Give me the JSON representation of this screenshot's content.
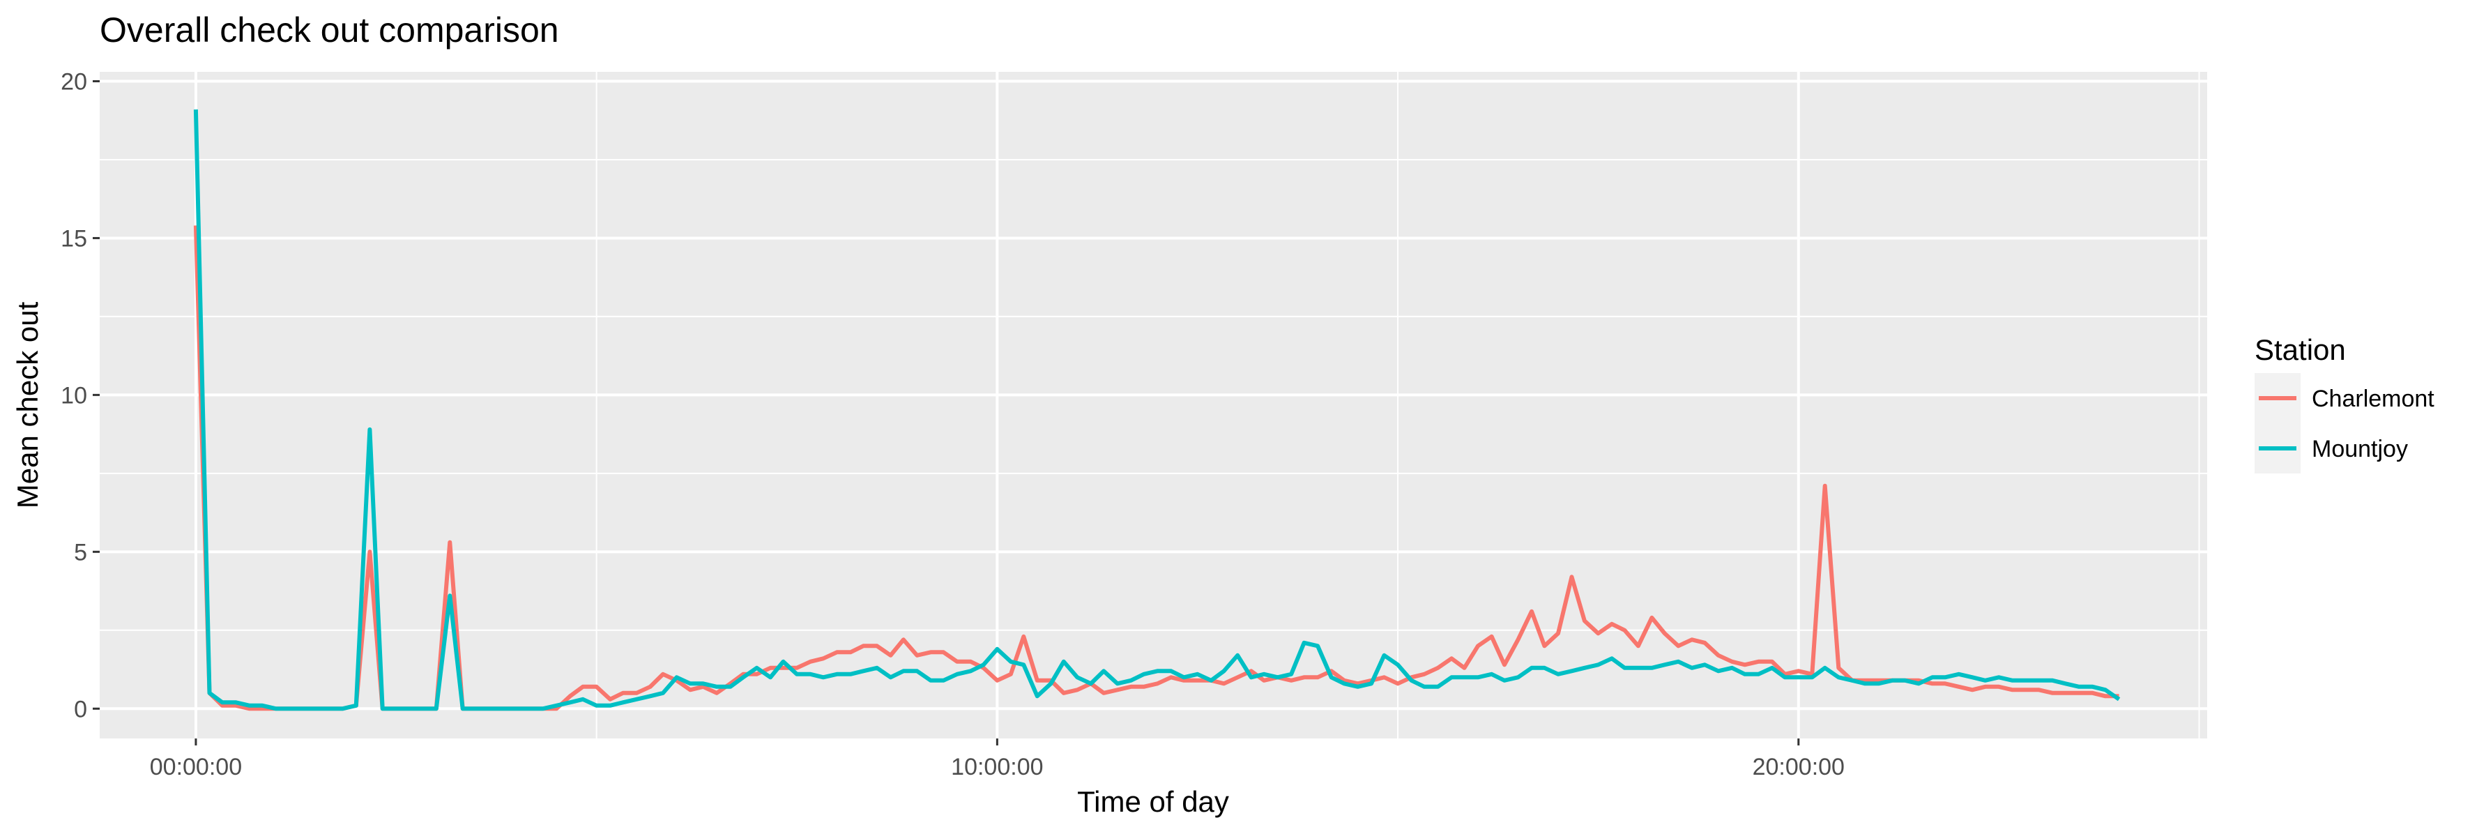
{
  "chart_data": {
    "type": "line",
    "title": "Overall check out comparison",
    "xlabel": "Time of day",
    "ylabel": "Mean check out",
    "x_unit": "hours",
    "xlim": [
      -1.2,
      25.1
    ],
    "ylim": [
      -0.95,
      20.3
    ],
    "x_ticks": [
      {
        "value": 0,
        "label": "00:00:00"
      },
      {
        "value": 10,
        "label": "10:00:00"
      },
      {
        "value": 20,
        "label": "20:00:00"
      }
    ],
    "y_ticks": [
      {
        "value": 0,
        "label": "0"
      },
      {
        "value": 5,
        "label": "5"
      },
      {
        "value": 10,
        "label": "10"
      },
      {
        "value": 15,
        "label": "15"
      },
      {
        "value": 20,
        "label": "20"
      }
    ],
    "grid": true,
    "background": "#ebebeb",
    "legend": {
      "title": "Station",
      "position": "right"
    },
    "series": [
      {
        "name": "Charlemont",
        "color": "#F8766D",
        "points": [
          [
            0.0,
            15.4
          ],
          [
            0.17,
            0.5
          ],
          [
            0.33,
            0.1
          ],
          [
            0.5,
            0.1
          ],
          [
            0.67,
            0.0
          ],
          [
            0.83,
            0.0
          ],
          [
            1.0,
            0.0
          ],
          [
            1.17,
            0.0
          ],
          [
            1.33,
            0.0
          ],
          [
            1.5,
            0.0
          ],
          [
            1.67,
            0.0
          ],
          [
            1.83,
            0.0
          ],
          [
            2.0,
            0.1
          ],
          [
            2.0,
            0.1
          ],
          [
            2.17,
            5.0
          ],
          [
            2.33,
            0.0
          ],
          [
            2.5,
            0.0
          ],
          [
            2.67,
            0.0
          ],
          [
            2.83,
            0.0
          ],
          [
            3.0,
            0.0
          ],
          [
            3.17,
            5.3
          ],
          [
            3.33,
            0.0
          ],
          [
            3.5,
            0.0
          ],
          [
            4.0,
            0.0
          ],
          [
            4.17,
            0.0
          ],
          [
            4.33,
            0.0
          ],
          [
            4.5,
            0.0
          ],
          [
            4.67,
            0.4
          ],
          [
            4.83,
            0.7
          ],
          [
            5.0,
            0.7
          ],
          [
            5.17,
            0.3
          ],
          [
            5.33,
            0.5
          ],
          [
            5.5,
            0.5
          ],
          [
            5.67,
            0.7
          ],
          [
            5.83,
            1.1
          ],
          [
            6.0,
            0.9
          ],
          [
            6.17,
            0.6
          ],
          [
            6.33,
            0.7
          ],
          [
            6.5,
            0.5
          ],
          [
            6.67,
            0.8
          ],
          [
            6.83,
            1.1
          ],
          [
            7.0,
            1.1
          ],
          [
            7.17,
            1.3
          ],
          [
            7.33,
            1.3
          ],
          [
            7.5,
            1.3
          ],
          [
            7.67,
            1.5
          ],
          [
            7.83,
            1.6
          ],
          [
            8.0,
            1.8
          ],
          [
            8.17,
            1.8
          ],
          [
            8.33,
            2.0
          ],
          [
            8.5,
            2.0
          ],
          [
            8.67,
            1.7
          ],
          [
            8.83,
            2.2
          ],
          [
            9.0,
            1.7
          ],
          [
            9.17,
            1.8
          ],
          [
            9.33,
            1.8
          ],
          [
            9.5,
            1.5
          ],
          [
            9.67,
            1.5
          ],
          [
            9.83,
            1.3
          ],
          [
            10.0,
            0.9
          ],
          [
            10.17,
            1.1
          ],
          [
            10.33,
            2.3
          ],
          [
            10.5,
            0.9
          ],
          [
            10.67,
            0.9
          ],
          [
            10.83,
            0.5
          ],
          [
            11.0,
            0.6
          ],
          [
            11.17,
            0.8
          ],
          [
            11.33,
            0.5
          ],
          [
            11.5,
            0.6
          ],
          [
            11.67,
            0.7
          ],
          [
            11.83,
            0.7
          ],
          [
            12.0,
            0.8
          ],
          [
            12.17,
            1.0
          ],
          [
            12.33,
            0.9
          ],
          [
            12.5,
            0.9
          ],
          [
            12.67,
            0.9
          ],
          [
            12.83,
            0.8
          ],
          [
            13.0,
            1.0
          ],
          [
            13.17,
            1.2
          ],
          [
            13.33,
            0.9
          ],
          [
            13.5,
            1.0
          ],
          [
            13.67,
            0.9
          ],
          [
            13.83,
            1.0
          ],
          [
            14.0,
            1.0
          ],
          [
            14.17,
            1.2
          ],
          [
            14.33,
            0.9
          ],
          [
            14.5,
            0.8
          ],
          [
            14.67,
            0.9
          ],
          [
            14.83,
            1.0
          ],
          [
            15.0,
            0.8
          ],
          [
            15.17,
            1.0
          ],
          [
            15.33,
            1.1
          ],
          [
            15.5,
            1.3
          ],
          [
            15.67,
            1.6
          ],
          [
            15.83,
            1.3
          ],
          [
            16.0,
            2.0
          ],
          [
            16.17,
            2.3
          ],
          [
            16.33,
            1.4
          ],
          [
            16.5,
            2.2
          ],
          [
            16.67,
            3.1
          ],
          [
            16.83,
            2.0
          ],
          [
            17.0,
            2.4
          ],
          [
            17.17,
            4.2
          ],
          [
            17.33,
            2.8
          ],
          [
            17.5,
            2.4
          ],
          [
            17.67,
            2.7
          ],
          [
            17.83,
            2.5
          ],
          [
            18.0,
            2.0
          ],
          [
            18.17,
            2.9
          ],
          [
            18.33,
            2.4
          ],
          [
            18.5,
            2.0
          ],
          [
            18.67,
            2.2
          ],
          [
            18.83,
            2.1
          ],
          [
            19.0,
            1.7
          ],
          [
            19.17,
            1.5
          ],
          [
            19.33,
            1.4
          ],
          [
            19.5,
            1.5
          ],
          [
            19.67,
            1.5
          ],
          [
            19.83,
            1.1
          ],
          [
            20.0,
            1.2
          ],
          [
            20.17,
            1.1
          ],
          [
            20.33,
            7.1
          ],
          [
            20.5,
            1.3
          ],
          [
            20.67,
            0.9
          ],
          [
            20.83,
            0.9
          ],
          [
            21.0,
            0.9
          ],
          [
            21.17,
            0.9
          ],
          [
            21.33,
            0.9
          ],
          [
            21.5,
            0.9
          ],
          [
            21.67,
            0.8
          ],
          [
            21.83,
            0.8
          ],
          [
            22.0,
            0.7
          ],
          [
            22.17,
            0.6
          ],
          [
            22.33,
            0.7
          ],
          [
            22.5,
            0.7
          ],
          [
            22.67,
            0.6
          ],
          [
            22.83,
            0.6
          ],
          [
            23.0,
            0.6
          ],
          [
            23.17,
            0.5
          ],
          [
            23.33,
            0.5
          ],
          [
            23.5,
            0.5
          ],
          [
            23.67,
            0.5
          ],
          [
            23.83,
            0.4
          ],
          [
            24.0,
            0.4
          ]
        ]
      },
      {
        "name": "Mountjoy",
        "color": "#00BFC4",
        "points": [
          [
            0.0,
            19.1
          ],
          [
            0.17,
            0.5
          ],
          [
            0.33,
            0.2
          ],
          [
            0.5,
            0.2
          ],
          [
            0.67,
            0.1
          ],
          [
            0.83,
            0.1
          ],
          [
            1.0,
            0.0
          ],
          [
            1.17,
            0.0
          ],
          [
            1.33,
            0.0
          ],
          [
            1.5,
            0.0
          ],
          [
            1.67,
            0.0
          ],
          [
            1.83,
            0.0
          ],
          [
            2.0,
            0.1
          ],
          [
            2.17,
            8.9
          ],
          [
            2.33,
            0.0
          ],
          [
            2.5,
            0.0
          ],
          [
            2.67,
            0.0
          ],
          [
            2.83,
            0.0
          ],
          [
            3.0,
            0.0
          ],
          [
            3.17,
            3.6
          ],
          [
            3.33,
            0.0
          ],
          [
            3.5,
            0.0
          ],
          [
            4.0,
            0.0
          ],
          [
            4.17,
            0.0
          ],
          [
            4.33,
            0.0
          ],
          [
            4.5,
            0.1
          ],
          [
            4.67,
            0.2
          ],
          [
            4.83,
            0.3
          ],
          [
            5.0,
            0.1
          ],
          [
            5.17,
            0.1
          ],
          [
            5.33,
            0.2
          ],
          [
            5.5,
            0.3
          ],
          [
            5.67,
            0.4
          ],
          [
            5.83,
            0.5
          ],
          [
            6.0,
            1.0
          ],
          [
            6.17,
            0.8
          ],
          [
            6.33,
            0.8
          ],
          [
            6.5,
            0.7
          ],
          [
            6.67,
            0.7
          ],
          [
            6.83,
            1.0
          ],
          [
            7.0,
            1.3
          ],
          [
            7.17,
            1.0
          ],
          [
            7.33,
            1.5
          ],
          [
            7.5,
            1.1
          ],
          [
            7.67,
            1.1
          ],
          [
            7.83,
            1.0
          ],
          [
            8.0,
            1.1
          ],
          [
            8.17,
            1.1
          ],
          [
            8.33,
            1.2
          ],
          [
            8.5,
            1.3
          ],
          [
            8.67,
            1.0
          ],
          [
            8.83,
            1.2
          ],
          [
            9.0,
            1.2
          ],
          [
            9.17,
            0.9
          ],
          [
            9.33,
            0.9
          ],
          [
            9.5,
            1.1
          ],
          [
            9.67,
            1.2
          ],
          [
            9.83,
            1.4
          ],
          [
            10.0,
            1.9
          ],
          [
            10.17,
            1.5
          ],
          [
            10.33,
            1.4
          ],
          [
            10.5,
            0.4
          ],
          [
            10.67,
            0.8
          ],
          [
            10.83,
            1.5
          ],
          [
            11.0,
            1.0
          ],
          [
            11.17,
            0.8
          ],
          [
            11.33,
            1.2
          ],
          [
            11.5,
            0.8
          ],
          [
            11.67,
            0.9
          ],
          [
            11.83,
            1.1
          ],
          [
            12.0,
            1.2
          ],
          [
            12.17,
            1.2
          ],
          [
            12.33,
            1.0
          ],
          [
            12.5,
            1.1
          ],
          [
            12.67,
            0.9
          ],
          [
            12.83,
            1.2
          ],
          [
            13.0,
            1.7
          ],
          [
            13.17,
            1.0
          ],
          [
            13.33,
            1.1
          ],
          [
            13.5,
            1.0
          ],
          [
            13.67,
            1.1
          ],
          [
            13.83,
            2.1
          ],
          [
            14.0,
            2.0
          ],
          [
            14.17,
            1.0
          ],
          [
            14.33,
            0.8
          ],
          [
            14.5,
            0.7
          ],
          [
            14.67,
            0.8
          ],
          [
            14.83,
            1.7
          ],
          [
            15.0,
            1.4
          ],
          [
            15.17,
            0.9
          ],
          [
            15.33,
            0.7
          ],
          [
            15.5,
            0.7
          ],
          [
            15.67,
            1.0
          ],
          [
            15.83,
            1.0
          ],
          [
            16.0,
            1.0
          ],
          [
            16.17,
            1.1
          ],
          [
            16.33,
            0.9
          ],
          [
            16.5,
            1.0
          ],
          [
            16.67,
            1.3
          ],
          [
            16.83,
            1.3
          ],
          [
            17.0,
            1.1
          ],
          [
            17.17,
            1.2
          ],
          [
            17.33,
            1.3
          ],
          [
            17.5,
            1.4
          ],
          [
            17.67,
            1.6
          ],
          [
            17.83,
            1.3
          ],
          [
            18.0,
            1.3
          ],
          [
            18.17,
            1.3
          ],
          [
            18.33,
            1.4
          ],
          [
            18.5,
            1.5
          ],
          [
            18.67,
            1.3
          ],
          [
            18.83,
            1.4
          ],
          [
            19.0,
            1.2
          ],
          [
            19.17,
            1.3
          ],
          [
            19.33,
            1.1
          ],
          [
            19.5,
            1.1
          ],
          [
            19.67,
            1.3
          ],
          [
            19.83,
            1.0
          ],
          [
            20.0,
            1.0
          ],
          [
            20.17,
            1.0
          ],
          [
            20.33,
            1.3
          ],
          [
            20.5,
            1.0
          ],
          [
            20.67,
            0.9
          ],
          [
            20.83,
            0.8
          ],
          [
            21.0,
            0.8
          ],
          [
            21.17,
            0.9
          ],
          [
            21.33,
            0.9
          ],
          [
            21.5,
            0.8
          ],
          [
            21.67,
            1.0
          ],
          [
            21.83,
            1.0
          ],
          [
            22.0,
            1.1
          ],
          [
            22.17,
            1.0
          ],
          [
            22.33,
            0.9
          ],
          [
            22.5,
            1.0
          ],
          [
            22.67,
            0.9
          ],
          [
            22.83,
            0.9
          ],
          [
            23.0,
            0.9
          ],
          [
            23.17,
            0.9
          ],
          [
            23.33,
            0.8
          ],
          [
            23.5,
            0.7
          ],
          [
            23.67,
            0.7
          ],
          [
            23.83,
            0.6
          ],
          [
            24.0,
            0.3
          ]
        ]
      }
    ]
  }
}
